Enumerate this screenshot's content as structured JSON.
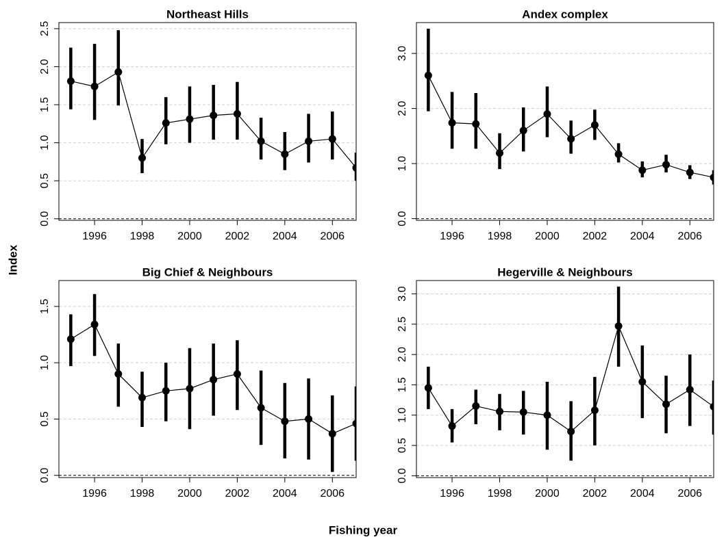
{
  "ylabel": "Index",
  "xlabel": "Fishing year",
  "chart_data": [
    {
      "type": "line",
      "title": "Northeast Hills",
      "color": "#000000",
      "grid": true,
      "x": [
        1995,
        1996,
        1997,
        1998,
        1999,
        2000,
        2001,
        2002,
        2003,
        2004,
        2005,
        2006,
        2007
      ],
      "values": [
        1.81,
        1.74,
        1.93,
        0.8,
        1.26,
        1.31,
        1.36,
        1.38,
        1.02,
        0.85,
        1.02,
        1.05,
        0.67
      ],
      "lower": [
        1.44,
        1.3,
        1.49,
        0.6,
        0.98,
        1.0,
        1.04,
        1.04,
        0.78,
        0.64,
        0.74,
        0.78,
        0.5
      ],
      "upper": [
        2.25,
        2.3,
        2.48,
        1.05,
        1.6,
        1.74,
        1.76,
        1.8,
        1.33,
        1.14,
        1.38,
        1.41,
        0.87
      ],
      "xlim": [
        1994.5,
        2007.0
      ],
      "xticks": [
        1996,
        1998,
        2000,
        2002,
        2004,
        2006
      ],
      "ylim": [
        -0.02,
        2.58
      ],
      "yticks": [
        {
          "value": 0,
          "label": "0.0"
        },
        {
          "value": 0.5,
          "label": "0.5"
        },
        {
          "value": 1,
          "label": "1.0"
        },
        {
          "value": 1.5,
          "label": "1.5"
        },
        {
          "value": 2,
          "label": "2.0"
        },
        {
          "value": 2.5,
          "label": "2.5"
        }
      ]
    },
    {
      "type": "line",
      "title": "Andex complex",
      "color": "#000000",
      "grid": true,
      "x": [
        1995,
        1996,
        1997,
        1998,
        1999,
        2000,
        2001,
        2002,
        2003,
        2004,
        2005,
        2006,
        2007
      ],
      "values": [
        2.6,
        1.74,
        1.72,
        1.19,
        1.6,
        1.9,
        1.45,
        1.7,
        1.17,
        0.88,
        0.98,
        0.84,
        0.75
      ],
      "lower": [
        1.95,
        1.27,
        1.27,
        0.9,
        1.22,
        1.48,
        1.18,
        1.43,
        1.02,
        0.75,
        0.84,
        0.72,
        0.62
      ],
      "upper": [
        3.45,
        2.3,
        2.28,
        1.55,
        2.02,
        2.4,
        1.78,
        1.98,
        1.37,
        1.04,
        1.16,
        0.97,
        0.88
      ],
      "xlim": [
        1994.5,
        2007.0
      ],
      "xticks": [
        1996,
        1998,
        2000,
        2002,
        2004,
        2006
      ],
      "ylim": [
        -0.03,
        3.56
      ],
      "yticks": [
        {
          "value": 0,
          "label": "0.0"
        },
        {
          "value": 1,
          "label": "1.0"
        },
        {
          "value": 2,
          "label": "2.0"
        },
        {
          "value": 3,
          "label": "3.0"
        }
      ]
    },
    {
      "type": "line",
      "title": "Big Chief & Neighbours",
      "color": "#000000",
      "grid": true,
      "x": [
        1995,
        1996,
        1997,
        1998,
        1999,
        2000,
        2001,
        2002,
        2003,
        2004,
        2005,
        2006,
        2007
      ],
      "values": [
        1.21,
        1.34,
        0.9,
        0.69,
        0.75,
        0.77,
        0.85,
        0.9,
        0.6,
        0.48,
        0.5,
        0.37,
        0.46
      ],
      "lower": [
        0.97,
        1.06,
        0.61,
        0.43,
        0.48,
        0.41,
        0.53,
        0.58,
        0.27,
        0.15,
        0.14,
        0.03,
        0.13
      ],
      "upper": [
        1.43,
        1.61,
        1.17,
        0.92,
        1.0,
        1.13,
        1.17,
        1.2,
        0.93,
        0.82,
        0.86,
        0.71,
        0.79
      ],
      "xlim": [
        1994.5,
        2007.0
      ],
      "xticks": [
        1996,
        1998,
        2000,
        2002,
        2004,
        2006
      ],
      "ylim": [
        -0.02,
        1.73
      ],
      "yticks": [
        {
          "value": 0,
          "label": "0.0"
        },
        {
          "value": 0.5,
          "label": "0.5"
        },
        {
          "value": 1,
          "label": "1.0"
        },
        {
          "value": 1.5,
          "label": "1.5"
        }
      ]
    },
    {
      "type": "line",
      "title": "Hegerville & Neighbours",
      "color": "#000000",
      "grid": true,
      "x": [
        1995,
        1996,
        1997,
        1998,
        1999,
        2000,
        2001,
        2002,
        2003,
        2004,
        2005,
        2006,
        2007
      ],
      "values": [
        1.45,
        0.82,
        1.15,
        1.06,
        1.05,
        1.0,
        0.73,
        1.08,
        2.47,
        1.55,
        1.18,
        1.42,
        1.14
      ],
      "lower": [
        1.1,
        0.55,
        0.85,
        0.75,
        0.68,
        0.43,
        0.25,
        0.5,
        1.8,
        0.95,
        0.7,
        0.82,
        0.68
      ],
      "upper": [
        1.8,
        1.1,
        1.42,
        1.35,
        1.4,
        1.55,
        1.23,
        1.63,
        3.12,
        2.15,
        1.65,
        2.0,
        1.57
      ],
      "xlim": [
        1994.5,
        2007.0
      ],
      "xticks": [
        1996,
        1998,
        2000,
        2002,
        2004,
        2006
      ],
      "ylim": [
        -0.03,
        3.22
      ],
      "yticks": [
        {
          "value": 0,
          "label": "0.0"
        },
        {
          "value": 0.5,
          "label": "0.5"
        },
        {
          "value": 1,
          "label": "1.0"
        },
        {
          "value": 1.5,
          "label": "1.5"
        },
        {
          "value": 2,
          "label": "2.0"
        },
        {
          "value": 2.5,
          "label": "2.5"
        },
        {
          "value": 3,
          "label": "3.0"
        }
      ]
    }
  ]
}
